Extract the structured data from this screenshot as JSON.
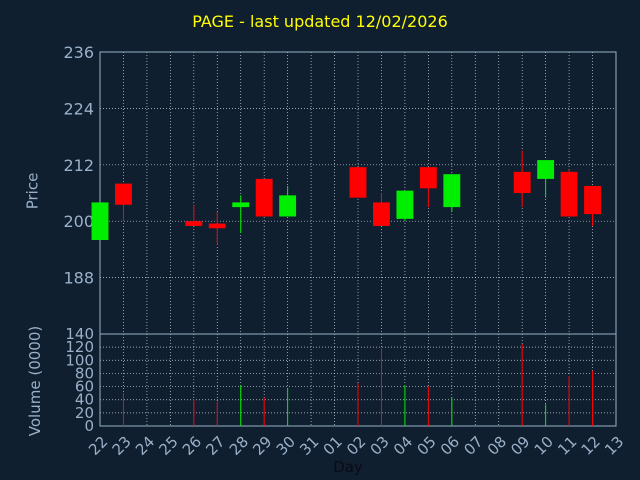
{
  "chart_data": {
    "type": "candlestick",
    "title": "PAGE - last updated 12/02/2026",
    "price_panel": {
      "ylabel": "Price",
      "ylim": [
        176,
        236
      ],
      "yticks": [
        188,
        200,
        212,
        224,
        236
      ]
    },
    "volume_panel": {
      "ylabel": "Volume (0000)",
      "ylim": [
        0,
        140
      ],
      "yticks": [
        0,
        20,
        40,
        60,
        80,
        100,
        120,
        140
      ]
    },
    "xlabel": "Day",
    "x": [
      "22",
      "23",
      "24",
      "25",
      "26",
      "27",
      "28",
      "29",
      "30",
      "31",
      "01",
      "02",
      "03",
      "04",
      "05",
      "06",
      "07",
      "08",
      "09",
      "10",
      "11",
      "12",
      "13"
    ],
    "candles": [
      {
        "x": "22",
        "open": 196,
        "high": 204,
        "low": 196,
        "close": 204,
        "volume": 0
      },
      {
        "x": "23",
        "open": 208,
        "high": 208,
        "low": 200,
        "close": 203.5,
        "volume": 50
      },
      {
        "x": "26",
        "open": 200,
        "high": 203.5,
        "low": 199,
        "close": 199,
        "volume": 40
      },
      {
        "x": "27",
        "open": 199.5,
        "high": 202,
        "low": 195,
        "close": 198.5,
        "volume": 37
      },
      {
        "x": "28",
        "open": 203,
        "high": 205.5,
        "low": 197.5,
        "close": 204,
        "volume": 62
      },
      {
        "x": "29",
        "open": 209,
        "high": 209,
        "low": 201,
        "close": 201,
        "volume": 43
      },
      {
        "x": "30",
        "open": 201,
        "high": 207.5,
        "low": 201,
        "close": 205.5,
        "volume": 58
      },
      {
        "x": "02",
        "open": 211.5,
        "high": 211.5,
        "low": 205,
        "close": 205,
        "volume": 65
      },
      {
        "x": "03",
        "open": 204,
        "high": 206,
        "low": 199,
        "close": 199,
        "volume": 118
      },
      {
        "x": "04",
        "open": 200.5,
        "high": 206.5,
        "low": 200,
        "close": 206.5,
        "volume": 62
      },
      {
        "x": "05",
        "open": 211.5,
        "high": 211.5,
        "low": 203,
        "close": 207,
        "volume": 60
      },
      {
        "x": "06",
        "open": 203,
        "high": 210,
        "low": 202,
        "close": 210,
        "volume": 43
      },
      {
        "x": "09",
        "open": 210.5,
        "high": 215,
        "low": 203,
        "close": 206,
        "volume": 125
      },
      {
        "x": "10",
        "open": 209,
        "high": 213,
        "low": 205,
        "close": 213,
        "volume": 33
      },
      {
        "x": "11",
        "open": 210.5,
        "high": 211,
        "low": 201,
        "close": 201,
        "volume": 76
      },
      {
        "x": "12",
        "open": 207.5,
        "high": 207.5,
        "low": 199,
        "close": 201.5,
        "volume": 84
      }
    ]
  },
  "colors": {
    "up": "#00ee00",
    "down": "#ff0000",
    "text": "#9ab0c8",
    "title": "#ffff00",
    "grid": "#ffffff",
    "background": "#0f1f30"
  }
}
